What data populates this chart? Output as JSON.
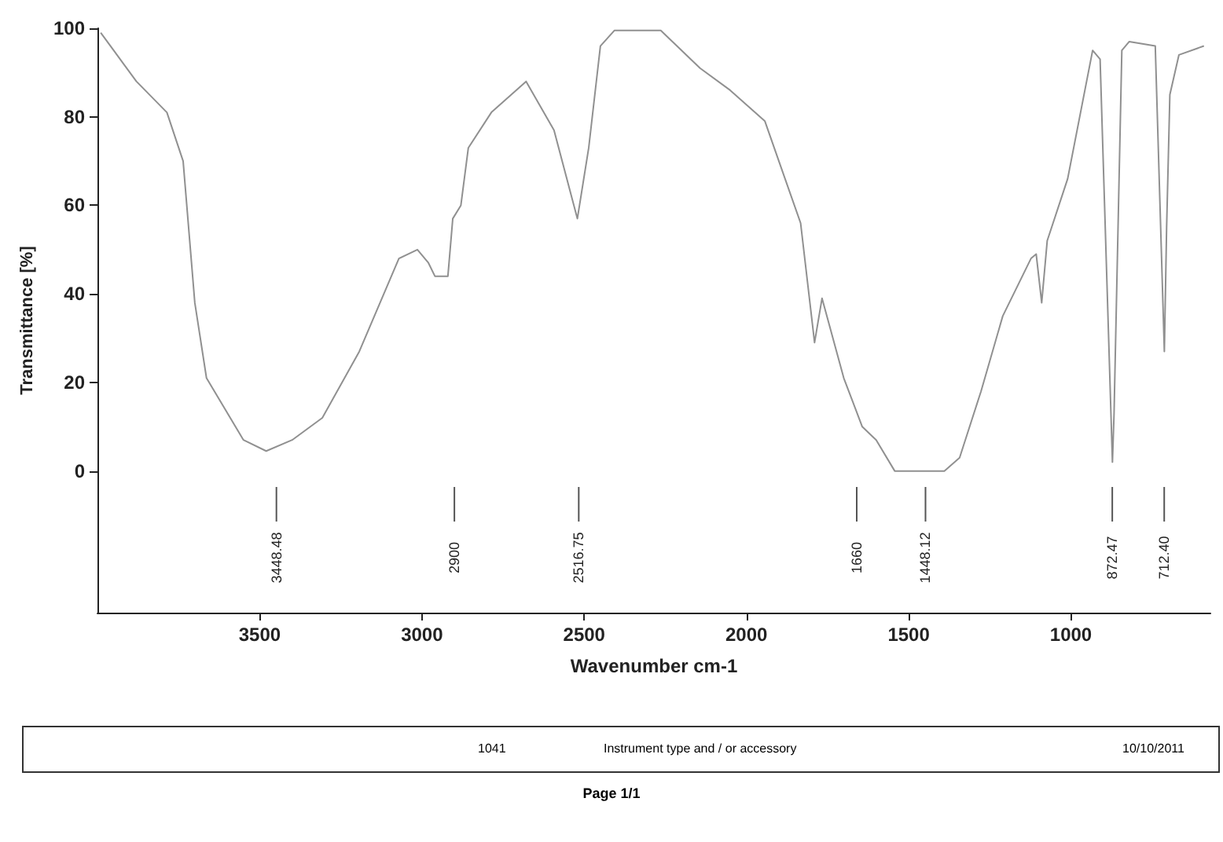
{
  "chart_data": {
    "type": "line",
    "xlabel": "Wavenumber cm-1",
    "ylabel": "Transmittance [%]",
    "xlim": [
      4000,
      570
    ],
    "xticks": [
      3500,
      3000,
      2500,
      2000,
      1500,
      1000
    ],
    "ylim": [
      -32,
      100
    ],
    "yticks": [
      0,
      20,
      40,
      60,
      80,
      100
    ],
    "grid": false,
    "marker": "none",
    "line_style": "solid",
    "ref_lines": [
      {
        "axis": "x",
        "value": 3448.48,
        "label": "3448.48"
      },
      {
        "axis": "x",
        "value": 2900,
        "label": "2900"
      },
      {
        "axis": "x",
        "value": 2516.75,
        "label": "2516.75"
      },
      {
        "axis": "x",
        "value": 1660,
        "label": "1660"
      },
      {
        "axis": "x",
        "value": 1448.12,
        "label": "1448.12"
      },
      {
        "axis": "x",
        "value": 872.47,
        "label": "872.47"
      },
      {
        "axis": "x",
        "value": 712.4,
        "label": "712.40"
      }
    ],
    "series": [
      {
        "color": "#909090",
        "x": [
          3990,
          3950,
          3920,
          3880,
          3786,
          3736,
          3700,
          3664,
          3550,
          3480,
          3400,
          3307,
          3193,
          3071,
          3014,
          2980,
          2960,
          2920,
          2905,
          2880,
          2857,
          2786,
          2679,
          2593,
          2521,
          2486,
          2450,
          2407,
          2264,
          2143,
          2050,
          1943,
          1900,
          1833,
          1790,
          1767,
          1700,
          1643,
          1600,
          1543,
          1390,
          1343,
          1277,
          1210,
          1123,
          1107,
          1090,
          1073,
          1010,
          933,
          910,
          872,
          867,
          843,
          820,
          740,
          712,
          705,
          695,
          667,
          590
        ],
        "values": [
          99,
          95,
          92,
          88,
          81,
          70,
          38,
          21,
          7,
          4.5,
          7,
          12,
          27,
          48,
          50,
          47,
          44,
          44,
          57,
          60,
          73,
          81,
          88,
          77,
          57,
          73,
          96,
          99.5,
          99.5,
          91,
          86,
          79,
          70,
          56,
          29,
          39,
          21,
          10,
          7,
          0,
          0,
          3,
          18,
          35,
          48,
          49,
          38,
          52,
          66,
          95,
          93,
          2,
          13,
          95,
          97,
          96,
          27,
          55,
          85,
          94,
          96
        ]
      }
    ],
    "annotations": [
      "1041",
      "Instrument type and / or accessory",
      "10/10/2011",
      "Page 1/1"
    ]
  }
}
